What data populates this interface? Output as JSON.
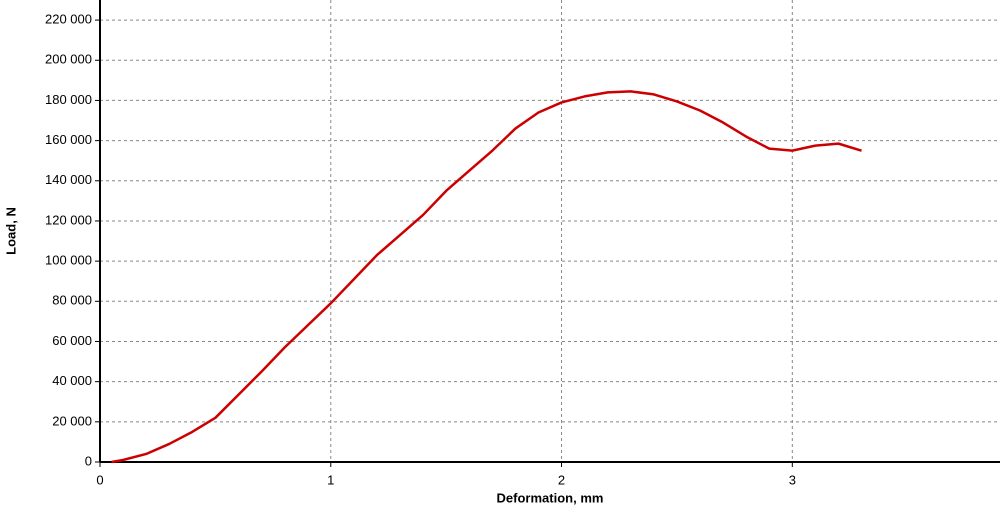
{
  "chart_data": {
    "type": "line",
    "xlabel": "Deformation, mm",
    "ylabel": "Load, N",
    "x": [
      0.05,
      0.1,
      0.2,
      0.3,
      0.4,
      0.5,
      0.6,
      0.7,
      0.8,
      0.9,
      1.0,
      1.1,
      1.2,
      1.3,
      1.4,
      1.5,
      1.6,
      1.7,
      1.8,
      1.9,
      2.0,
      2.1,
      2.2,
      2.3,
      2.4,
      2.5,
      2.6,
      2.7,
      2.8,
      2.9,
      3.0,
      3.1,
      3.2,
      3.3
    ],
    "series": [
      {
        "color": "#cc0000",
        "values": [
          0,
          1000,
          4000,
          9000,
          15000,
          22000,
          33500,
          45000,
          57000,
          68000,
          79000,
          91000,
          103000,
          113000,
          123000,
          135000,
          145000,
          155000,
          166000,
          174000,
          179000,
          182000,
          184000,
          184500,
          183000,
          179500,
          175000,
          169000,
          162000,
          156000,
          155000,
          157500,
          158500,
          155000
        ]
      }
    ],
    "xlim": [
      0,
      3.9
    ],
    "ylim": [
      0,
      230000
    ],
    "xticks": [
      0,
      1,
      2,
      3
    ],
    "yticks": [
      0,
      {
        "value": 20000,
        "label": "20 000"
      },
      {
        "value": 40000,
        "label": "40 000"
      },
      {
        "value": 60000,
        "label": "60 000"
      },
      {
        "value": 80000,
        "label": "80 000"
      },
      {
        "value": 100000,
        "label": "100 000"
      },
      {
        "value": 120000,
        "label": "120 000"
      },
      {
        "value": 140000,
        "label": "140 000"
      },
      {
        "value": 160000,
        "label": "160 000"
      },
      {
        "value": 180000,
        "label": "180 000"
      },
      {
        "value": 200000,
        "label": "200 000"
      },
      {
        "value": 220000,
        "label": "220 000"
      }
    ],
    "grid": true
  }
}
